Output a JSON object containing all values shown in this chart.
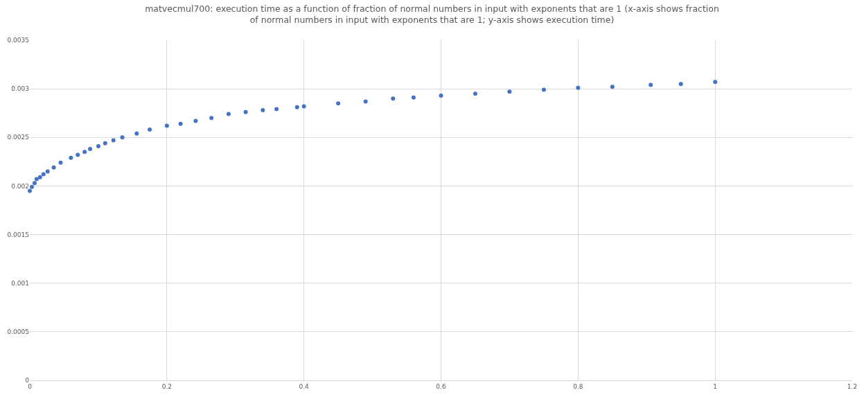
{
  "chart_data": {
    "type": "scatter",
    "title": "matvecmul700: execution time as a function of fraction of normal numbers in input with exponents that are 1 (x-axis shows fraction of normal numbers in input with exponents that are 1; y-axis shows execution time)",
    "marker": "circle",
    "grid": true,
    "x": [
      0,
      0.003,
      0.007,
      0.01,
      0.015,
      0.02,
      0.026,
      0.035,
      0.045,
      0.06,
      0.07,
      0.08,
      0.088,
      0.1,
      0.11,
      0.122,
      0.135,
      0.156,
      0.175,
      0.2,
      0.22,
      0.242,
      0.265,
      0.29,
      0.315,
      0.34,
      0.36,
      0.39,
      0.4,
      0.45,
      0.49,
      0.53,
      0.56,
      0.6,
      0.65,
      0.7,
      0.75,
      0.8,
      0.85,
      0.906,
      0.95,
      1
    ],
    "series": [
      {
        "color": "#4472c4",
        "values": [
          0.00195,
          0.00199,
          0.00203,
          0.00207,
          0.00209,
          0.00212,
          0.00215,
          0.00219,
          0.00224,
          0.00229,
          0.00232,
          0.00235,
          0.00238,
          0.00241,
          0.00244,
          0.00247,
          0.0025,
          0.00254,
          0.00258,
          0.00262,
          0.00264,
          0.00267,
          0.0027,
          0.00274,
          0.00276,
          0.00278,
          0.00279,
          0.00281,
          0.00282,
          0.00285,
          0.00287,
          0.0029,
          0.00291,
          0.00293,
          0.00295,
          0.00297,
          0.00299,
          0.00301,
          0.00302,
          0.00304,
          0.00305,
          0.00307
        ]
      }
    ],
    "xlim": [
      0,
      1.2
    ],
    "xticks": [
      0,
      0.2,
      0.4,
      0.6,
      0.8,
      1,
      1.2
    ],
    "ylim": [
      0,
      0.0035
    ],
    "yticks": [
      0,
      0.0005,
      0.001,
      0.0015,
      0.002,
      0.0025,
      0.003,
      0.0035
    ]
  }
}
